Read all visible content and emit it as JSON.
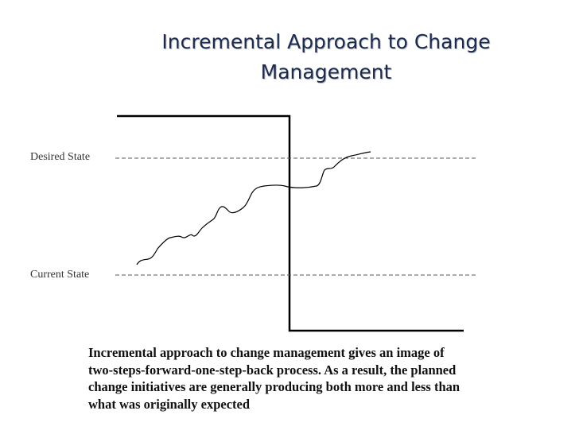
{
  "slide": {
    "title_lines": [
      "Incremental Approach to Change",
      "Management"
    ],
    "labels": {
      "desired_state": "Desired State",
      "current_state": "Current State"
    },
    "caption_lines": [
      "Incremental approach to change management gives an image of",
      "two-steps-forward-one-step-back process. As a result, the planned",
      "change initiatives are generally producing both more and less than",
      "what was originally expected"
    ]
  },
  "colors": {
    "title": "#1c2a4e",
    "lines": "#000000",
    "dashes": "#555555"
  }
}
